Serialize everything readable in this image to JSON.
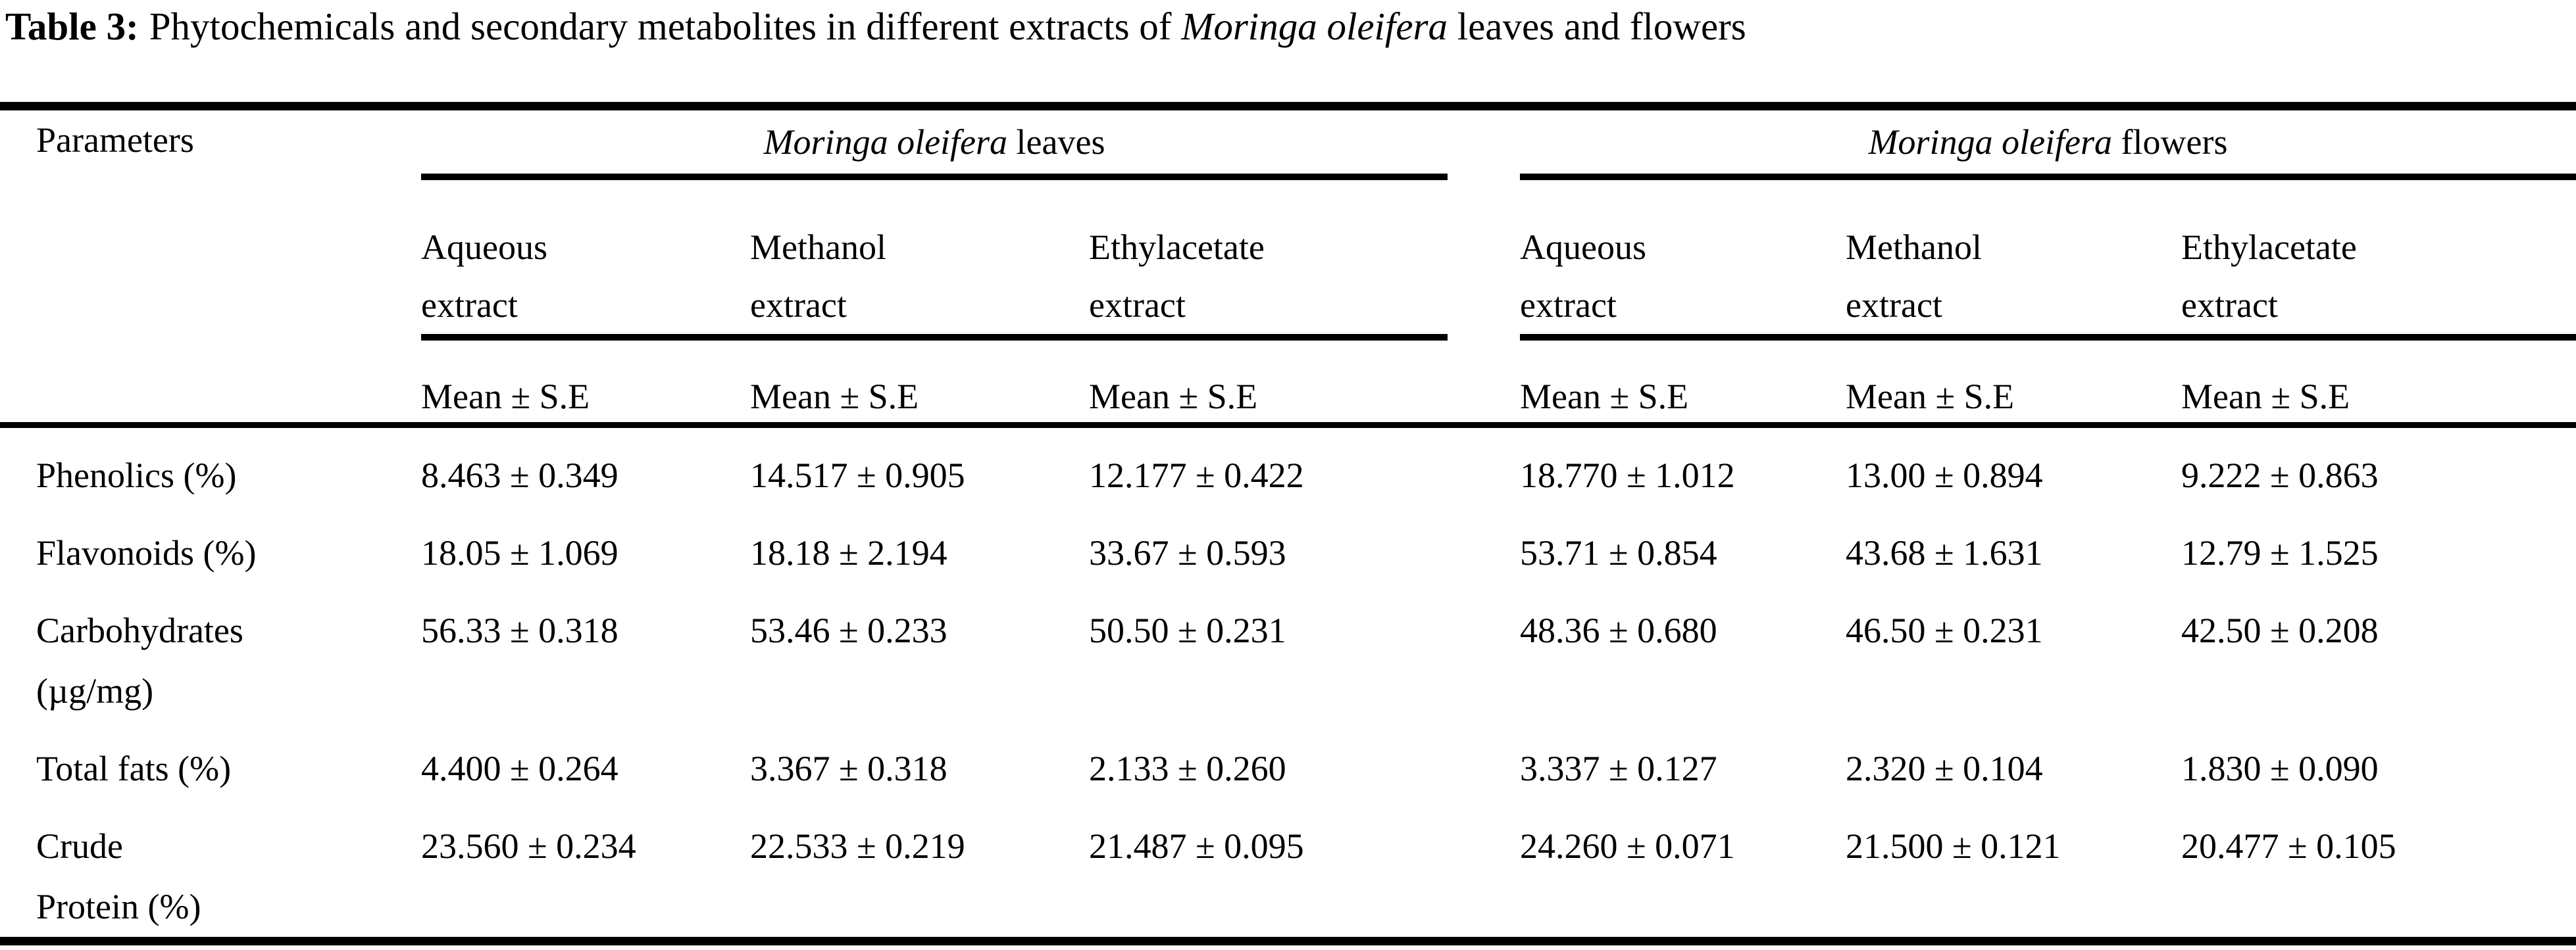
{
  "title": {
    "label": "Table 3:",
    "text_before": "Phytochemicals and secondary metabolites in different extracts of",
    "species": "Moringa oleifera",
    "text_after": "leaves and flowers"
  },
  "table": {
    "parameters_header": "Parameters",
    "stat_header": "Mean ± S.E",
    "groups": [
      {
        "species": "Moringa oleifera",
        "suffix": "leaves",
        "columns": [
          "Aqueous\nextract",
          "Methanol\nextract",
          "Ethylacetate\nextract"
        ]
      },
      {
        "species": "Moringa oleifera",
        "suffix": "flowers",
        "columns": [
          "Aqueous\nextract",
          "Methanol\nextract",
          "Ethylacetate\nextract"
        ]
      }
    ],
    "rows": [
      {
        "parameter": "Phenolics (%)",
        "values": [
          "8.463 ± 0.349",
          "14.517 ± 0.905",
          "12.177 ± 0.422",
          "18.770 ± 1.012",
          "13.00 ± 0.894",
          "9.222 ± 0.863"
        ]
      },
      {
        "parameter": "Flavonoids (%)",
        "values": [
          "18.05 ± 1.069",
          "18.18 ± 2.194",
          "33.67 ± 0.593",
          "53.71 ± 0.854",
          "43.68 ± 1.631",
          "12.79 ± 1.525"
        ]
      },
      {
        "parameter": "Carbohydrates\n(µg/mg)",
        "values": [
          "56.33 ± 0.318",
          "53.46 ± 0.233",
          "50.50 ± 0.231",
          "48.36 ± 0.680",
          "46.50 ± 0.231",
          "42.50 ± 0.208"
        ]
      },
      {
        "parameter": "Total fats (%)",
        "values": [
          "4.400 ± 0.264",
          "3.367 ± 0.318",
          "2.133 ± 0.260",
          "3.337 ± 0.127",
          "2.320 ± 0.104",
          "1.830 ± 0.090"
        ]
      },
      {
        "parameter": "Crude\nProtein (%)",
        "values": [
          "23.560 ± 0.234",
          "22.533 ± 0.219",
          "21.487 ± 0.095",
          "24.260 ± 0.071",
          "21.500 ± 0.121",
          "20.477 ± 0.105"
        ]
      }
    ]
  },
  "colors": {
    "background": "#ffffff",
    "text": "#000000",
    "rule": "#000000"
  }
}
